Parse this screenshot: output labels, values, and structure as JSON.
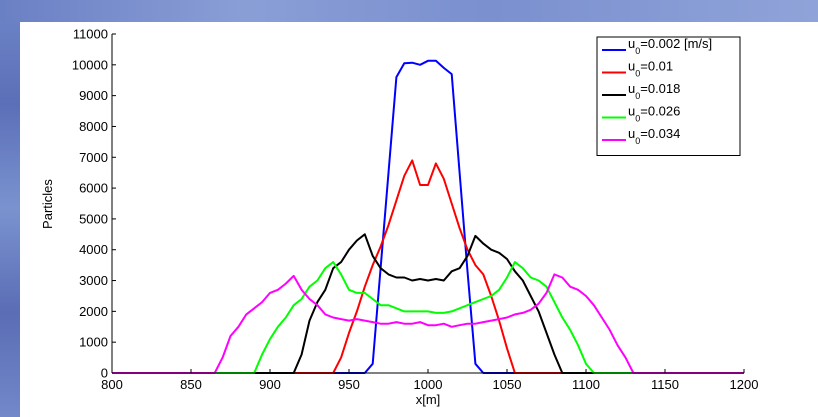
{
  "chart_data": {
    "type": "line",
    "title": "",
    "xlabel": "x[m]",
    "ylabel": "Particles",
    "xlim": [
      800,
      1200
    ],
    "ylim": [
      0,
      11000
    ],
    "xticks": [
      800,
      850,
      900,
      950,
      1000,
      1050,
      1100,
      1150,
      1200
    ],
    "yticks": [
      0,
      1000,
      2000,
      3000,
      4000,
      5000,
      6000,
      7000,
      8000,
      9000,
      10000,
      11000
    ],
    "grid": false,
    "legend_position": "top-right",
    "series": [
      {
        "name_prefix": "u",
        "name_sub": "0",
        "name_suffix": "=0.002 [m/s]",
        "color": "#0000ff",
        "x": [
          800,
          955,
          960,
          965,
          970,
          975,
          980,
          985,
          990,
          995,
          1000,
          1005,
          1010,
          1015,
          1020,
          1025,
          1030,
          1035,
          1040,
          1200
        ],
        "y": [
          0,
          0,
          0,
          300,
          3400,
          6500,
          9600,
          10050,
          10070,
          10000,
          10130,
          10130,
          9900,
          9700,
          6500,
          3300,
          300,
          0,
          0,
          0
        ]
      },
      {
        "name_prefix": "u",
        "name_sub": "0",
        "name_suffix": "=0.01",
        "color": "#ff0000",
        "x": [
          800,
          935,
          940,
          945,
          950,
          955,
          960,
          965,
          970,
          975,
          980,
          985,
          990,
          995,
          1000,
          1005,
          1010,
          1015,
          1020,
          1025,
          1030,
          1035,
          1040,
          1045,
          1050,
          1055,
          1060,
          1200
        ],
        "y": [
          0,
          0,
          0,
          500,
          1300,
          2000,
          2800,
          3500,
          4100,
          4800,
          5600,
          6400,
          6900,
          6100,
          6100,
          6800,
          6300,
          5500,
          4700,
          4000,
          3500,
          3200,
          2500,
          1700,
          800,
          0,
          0,
          0
        ]
      },
      {
        "name_prefix": "u",
        "name_sub": "0",
        "name_suffix": "=0.018",
        "color": "#000000",
        "x": [
          800,
          910,
          915,
          920,
          925,
          930,
          935,
          940,
          945,
          950,
          955,
          960,
          965,
          970,
          975,
          980,
          985,
          990,
          995,
          1000,
          1005,
          1010,
          1015,
          1020,
          1025,
          1030,
          1035,
          1040,
          1045,
          1050,
          1055,
          1060,
          1065,
          1070,
          1075,
          1080,
          1085,
          1090,
          1200
        ],
        "y": [
          0,
          0,
          0,
          600,
          1700,
          2300,
          2700,
          3400,
          3600,
          4000,
          4300,
          4500,
          3800,
          3400,
          3200,
          3100,
          3100,
          3000,
          3050,
          3000,
          3050,
          3000,
          3300,
          3400,
          3800,
          4450,
          4200,
          4000,
          3900,
          3700,
          3300,
          3000,
          2500,
          2000,
          1300,
          600,
          0,
          0,
          0
        ]
      },
      {
        "name_prefix": "u",
        "name_sub": "0",
        "name_suffix": "=0.026",
        "color": "#00ff00",
        "x": [
          800,
          885,
          890,
          895,
          900,
          905,
          910,
          915,
          920,
          925,
          930,
          935,
          940,
          945,
          950,
          955,
          960,
          965,
          970,
          975,
          980,
          985,
          990,
          995,
          1000,
          1005,
          1010,
          1015,
          1020,
          1025,
          1030,
          1035,
          1040,
          1045,
          1050,
          1055,
          1060,
          1065,
          1070,
          1075,
          1080,
          1085,
          1090,
          1095,
          1100,
          1105,
          1200
        ],
        "y": [
          0,
          0,
          0,
          600,
          1100,
          1500,
          1800,
          2200,
          2400,
          2800,
          3000,
          3400,
          3600,
          3200,
          2700,
          2600,
          2600,
          2400,
          2200,
          2200,
          2100,
          2000,
          2000,
          2000,
          2000,
          1950,
          1950,
          2000,
          2100,
          2200,
          2300,
          2400,
          2500,
          2700,
          3100,
          3600,
          3400,
          3100,
          3000,
          2800,
          2300,
          1800,
          1400,
          900,
          300,
          0,
          0
        ]
      },
      {
        "name_prefix": "u",
        "name_sub": "0",
        "name_suffix": "=0.034",
        "color": "#ff00ff",
        "x": [
          800,
          865,
          870,
          875,
          880,
          885,
          890,
          895,
          900,
          905,
          910,
          915,
          920,
          925,
          930,
          935,
          940,
          945,
          950,
          955,
          960,
          965,
          970,
          975,
          980,
          985,
          990,
          995,
          1000,
          1005,
          1010,
          1015,
          1020,
          1025,
          1030,
          1035,
          1040,
          1045,
          1050,
          1055,
          1060,
          1065,
          1070,
          1075,
          1080,
          1085,
          1090,
          1095,
          1100,
          1105,
          1110,
          1115,
          1120,
          1125,
          1130,
          1200
        ],
        "y": [
          0,
          0,
          500,
          1200,
          1500,
          1900,
          2100,
          2300,
          2600,
          2700,
          2900,
          3150,
          2700,
          2400,
          2200,
          1900,
          1800,
          1750,
          1700,
          1750,
          1700,
          1650,
          1600,
          1600,
          1650,
          1600,
          1600,
          1650,
          1550,
          1550,
          1600,
          1500,
          1550,
          1600,
          1600,
          1650,
          1700,
          1750,
          1800,
          1900,
          1950,
          2050,
          2250,
          2600,
          3200,
          3100,
          2800,
          2700,
          2500,
          2200,
          1800,
          1400,
          900,
          500,
          0,
          0
        ]
      }
    ]
  }
}
